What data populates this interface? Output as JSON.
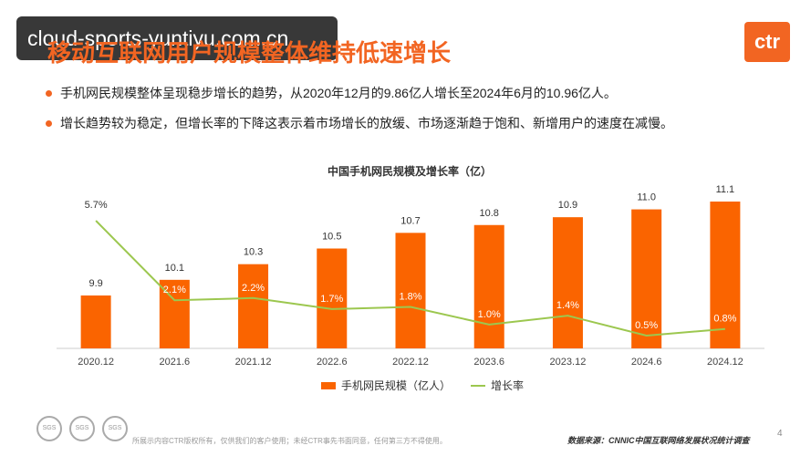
{
  "header": {
    "title": "移动互联网用户规模整体维持低速增长",
    "watermark": "cloud-sports-yuntiyu.com.cn",
    "logo_text": "ctr"
  },
  "bullets": [
    "手机网民规模整体呈现稳步增长的趋势，从2020年12月的9.86亿人增长至2024年6月的10.96亿人。",
    "增长趋势较为稳定，但增长率的下降这表示着市场增长的放缓、市场逐渐趋于饱和、新增用户的速度在减慢。"
  ],
  "chart_data": {
    "type": "bar",
    "title": "中国手机网民规模及增长率（亿）",
    "categories": [
      "2020.12",
      "2021.6",
      "2021.12",
      "2022.6",
      "2022.12",
      "2023.6",
      "2023.12",
      "2024.6",
      "2024.12"
    ],
    "series": [
      {
        "name": "手机网民规模（亿人）",
        "type": "bar",
        "values": [
          9.9,
          10.1,
          10.3,
          10.5,
          10.7,
          10.8,
          10.9,
          11.0,
          11.1
        ],
        "labels": [
          "9.9",
          "10.1",
          "10.3",
          "10.5",
          "10.7",
          "10.8",
          "10.9",
          "11.0",
          "11.1"
        ]
      },
      {
        "name": "增长率",
        "type": "line",
        "values": [
          5.7,
          2.1,
          2.2,
          1.7,
          1.8,
          1.0,
          1.4,
          0.5,
          0.8
        ],
        "labels": [
          "5.7%",
          "2.1%",
          "2.2%",
          "1.7%",
          "1.8%",
          "1.0%",
          "1.4%",
          "0.5%",
          "0.8%"
        ]
      }
    ],
    "legend_position": "bottom",
    "grid": false,
    "colors": {
      "bar": "#fa6400",
      "line": "#9cc74f"
    }
  },
  "footer": {
    "seal_text": "SGS",
    "footnote": "所展示内容CTR版权所有，仅供我们的客户使用；未经CTR事先书面同意，任何第三方不得使用。",
    "source": "数据来源：CNNIC中国互联网络发展状况统计调查",
    "page_number": "4"
  }
}
